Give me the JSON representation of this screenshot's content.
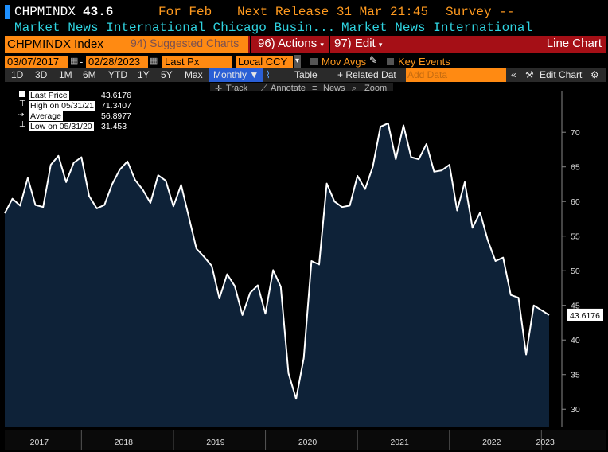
{
  "header": {
    "ticker": "CHPMINDX",
    "last_value": "43.6",
    "period": "For Feb",
    "next_release": "Next Release 31 Mar 21:45",
    "survey": "Survey --",
    "source_full": "Market News International Chicago Busin...",
    "source_short": "Market News International"
  },
  "menu_bar": {
    "security_title": "CHPMINDX Index",
    "suggested": "94) Suggested Charts",
    "actions": "96) Actions",
    "edit": "97) Edit",
    "chart_type": "Line Chart"
  },
  "controls": {
    "start_date": "03/07/2017",
    "end_date": "02/28/2023",
    "field": "Last Px",
    "currency": "Local CCY",
    "mov_avgs": "Mov Avgs",
    "key_events": "Key Events"
  },
  "toolbar": {
    "ranges": [
      "1D",
      "3D",
      "1M",
      "6M",
      "YTD",
      "1Y",
      "5Y",
      "Max"
    ],
    "frequency": "Monthly",
    "table": "Table",
    "related": "+ Related Dat",
    "add_data": "Add Data",
    "edit_chart": "Edit Chart",
    "track": "Track",
    "annotate": "Annotate",
    "news": "News",
    "zoom": "Zoom"
  },
  "legend": {
    "last_price_label": "Last Price",
    "last_price_value": "43.6176",
    "high_label": "High on 05/31/21",
    "high_value": "71.3407",
    "average_label": "Average",
    "average_value": "56.8977",
    "low_label": "Low on 05/31/20",
    "low_value": "31.453"
  },
  "colors": {
    "accent": "#ff8a12",
    "menu_red": "#a50f16",
    "header_teal": "#2fd3e0",
    "fill": "#0e2238",
    "line": "#ffffff"
  },
  "chart_data": {
    "type": "area",
    "title": "",
    "xlabel": "",
    "ylabel": "",
    "ylim": [
      27.5,
      76
    ],
    "yticks": [
      30,
      35,
      40,
      45,
      50,
      55,
      60,
      65,
      70
    ],
    "xticks": [
      "2017",
      "2018",
      "2019",
      "2020",
      "2021",
      "2022",
      "2023"
    ],
    "grid": false,
    "legend_position": "top-left",
    "last_label": "43.6176",
    "series": [
      {
        "x": [
          "2017-03",
          "2017-04",
          "2017-05",
          "2017-06",
          "2017-07",
          "2017-08",
          "2017-09",
          "2017-10",
          "2017-11",
          "2017-12",
          "2018-01",
          "2018-02",
          "2018-03",
          "2018-04",
          "2018-05",
          "2018-06",
          "2018-07",
          "2018-08",
          "2018-09",
          "2018-10",
          "2018-11",
          "2018-12",
          "2019-01",
          "2019-02",
          "2019-03",
          "2019-04",
          "2019-05",
          "2019-06",
          "2019-07",
          "2019-08",
          "2019-09",
          "2019-10",
          "2019-11",
          "2019-12",
          "2020-01",
          "2020-02",
          "2020-03",
          "2020-04",
          "2020-05",
          "2020-06",
          "2020-07",
          "2020-08",
          "2020-09",
          "2020-10",
          "2020-11",
          "2020-12",
          "2021-01",
          "2021-02",
          "2021-03",
          "2021-04",
          "2021-05",
          "2021-06",
          "2021-07",
          "2021-08",
          "2021-09",
          "2021-10",
          "2021-11",
          "2021-12",
          "2022-01",
          "2022-02",
          "2022-03",
          "2022-04",
          "2022-05",
          "2022-06",
          "2022-07",
          "2022-08",
          "2022-09",
          "2022-10",
          "2022-11",
          "2022-12",
          "2023-01",
          "2023-02"
        ],
        "values": [
          58.3,
          60.4,
          59.4,
          63.4,
          59.5,
          59.2,
          65.3,
          66.6,
          62.8,
          65.6,
          66.4,
          60.8,
          59.0,
          59.5,
          62.5,
          64.6,
          65.8,
          63.1,
          61.7,
          59.8,
          63.8,
          63.0,
          59.3,
          62.4,
          57.8,
          53.2,
          52.0,
          50.7,
          46.0,
          49.5,
          47.8,
          43.6,
          46.8,
          47.9,
          43.8,
          50.1,
          47.7,
          35.2,
          31.5,
          37.4,
          51.4,
          50.9,
          62.6,
          60.0,
          59.2,
          59.4,
          63.7,
          61.8,
          65.0,
          70.8,
          71.3,
          66.1,
          71.0,
          66.4,
          66.1,
          68.3,
          64.3,
          64.5,
          65.3,
          58.7,
          62.8,
          56.2,
          58.4,
          54.4,
          51.4,
          51.9,
          46.5,
          46.1,
          37.9,
          45.0,
          44.3,
          43.6
        ]
      }
    ]
  }
}
